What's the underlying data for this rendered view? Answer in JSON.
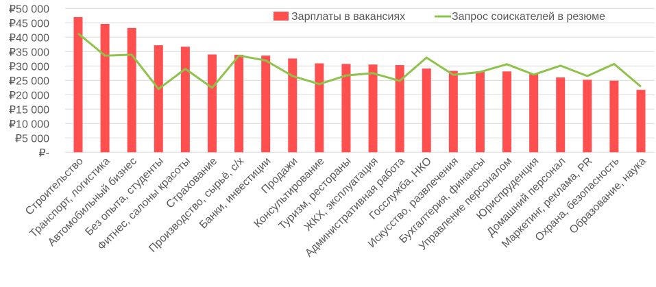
{
  "chart_data": {
    "type": "bar",
    "title": "",
    "xlabel": "",
    "ylabel": "",
    "ylim": [
      0,
      50000
    ],
    "y_ticks": [
      {
        "value": 0,
        "label": "₽-"
      },
      {
        "value": 5000,
        "label": "₽5 000"
      },
      {
        "value": 10000,
        "label": "₽10 000"
      },
      {
        "value": 15000,
        "label": "₽15 000"
      },
      {
        "value": 20000,
        "label": "₽20 000"
      },
      {
        "value": 25000,
        "label": "₽25 000"
      },
      {
        "value": 30000,
        "label": "₽30 000"
      },
      {
        "value": 35000,
        "label": "₽35 000"
      },
      {
        "value": 40000,
        "label": "₽40 000"
      },
      {
        "value": 45000,
        "label": "₽45 000"
      },
      {
        "value": 50000,
        "label": "₽50 000"
      }
    ],
    "grid": true,
    "legend": "top-right",
    "categories": [
      "Строительство",
      "Транспорт, логистика",
      "Автомобильный бизнес",
      "Без опыта, студенты",
      "Фитнес, салоны красоты",
      "Страхование",
      "Производство, сырьё, с/х",
      "Банки, инвестиции",
      "Продажи",
      "Консультирование",
      "Туризм, рестораны",
      "ЖКХ, эксплуатация",
      "Административная работа",
      "Госслужба, НКО",
      "Искусство, развлечения",
      "Бухгалтерия, финансы",
      "Управление персоналом",
      "Юриспруденция",
      "Домашний персонал",
      "Маркетинг, реклама, PR",
      "Охрана, безопасность",
      "Образование, наука"
    ],
    "series": [
      {
        "name": "Зарплаты в вакансиях",
        "type": "bar",
        "color": "#FF4F4F",
        "values": [
          47000,
          44600,
          43200,
          37200,
          36700,
          34000,
          33900,
          33600,
          32600,
          30900,
          30700,
          30500,
          30300,
          29100,
          28300,
          28100,
          28100,
          27300,
          26000,
          25200,
          24900,
          21700
        ]
      },
      {
        "name": "Запрос соискателей в резюме",
        "type": "line",
        "color": "#8DC34A",
        "values": [
          41300,
          33600,
          33900,
          22000,
          29000,
          22400,
          33600,
          31900,
          26500,
          23700,
          26700,
          27500,
          24800,
          32900,
          26900,
          27900,
          30600,
          27000,
          30100,
          26500,
          30700,
          22800
        ]
      }
    ]
  }
}
